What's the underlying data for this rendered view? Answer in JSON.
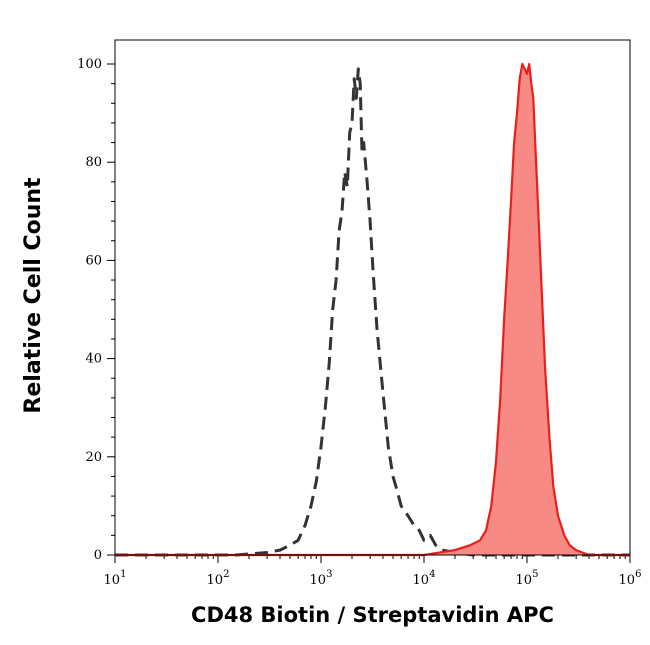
{
  "chart_data": {
    "type": "area",
    "xlabel": "CD48 Biotin / Streptavidin APC",
    "ylabel": "Relative Cell Count",
    "x_scale": "log",
    "xlim": [
      10,
      1000000
    ],
    "ylim": [
      0,
      100
    ],
    "x_ticks": [
      {
        "value": 10,
        "base": "10",
        "exp": "1"
      },
      {
        "value": 100,
        "base": "10",
        "exp": "2"
      },
      {
        "value": 1000,
        "base": "10",
        "exp": "3"
      },
      {
        "value": 10000,
        "base": "10",
        "exp": "4"
      },
      {
        "value": 100000,
        "base": "10",
        "exp": "5"
      },
      {
        "value": 1000000,
        "base": "10",
        "exp": "6"
      }
    ],
    "y_ticks": [
      {
        "value": 0,
        "label": "0"
      },
      {
        "value": 20,
        "label": "20"
      },
      {
        "value": 40,
        "label": "40"
      },
      {
        "value": 60,
        "label": "60"
      },
      {
        "value": 80,
        "label": "80"
      },
      {
        "value": 100,
        "label": "100"
      }
    ],
    "grid": false,
    "series": [
      {
        "style": "dashed",
        "color": "#333333",
        "fill": "none",
        "x": [
          10,
          150,
          300,
          400,
          500,
          600,
          700,
          800,
          900,
          1000,
          1100,
          1200,
          1300,
          1400,
          1500,
          1600,
          1700,
          1800,
          1900,
          2000,
          2100,
          2200,
          2300,
          2400,
          2500,
          2600,
          2700,
          2800,
          2900,
          3000,
          3200,
          3500,
          4000,
          4500,
          5000,
          5500,
          6000,
          7000,
          8000,
          9000,
          10000,
          11500,
          13000,
          15000,
          20000,
          30000,
          50000,
          100000,
          1000000
        ],
        "y": [
          0,
          0,
          0.5,
          1,
          2,
          3,
          6,
          10,
          15,
          22,
          30,
          39,
          50,
          56,
          66,
          70,
          78,
          75,
          86,
          88,
          97,
          93,
          99,
          96,
          82,
          84,
          80,
          76,
          72,
          68,
          58,
          46,
          33,
          22,
          16,
          13,
          10,
          8,
          6,
          5,
          3,
          4,
          2,
          1,
          0.5,
          0,
          0,
          0,
          0
        ]
      },
      {
        "style": "solid",
        "color": "#e8201a",
        "fill": "#f88a86",
        "x": [
          10,
          10000,
          20000,
          28000,
          35000,
          40000,
          45000,
          50000,
          55000,
          60000,
          65000,
          70000,
          75000,
          80000,
          85000,
          90000,
          95000,
          100000,
          105000,
          110000,
          115000,
          120000,
          130000,
          140000,
          150000,
          165000,
          180000,
          200000,
          230000,
          260000,
          300000,
          400000,
          1000000
        ],
        "y": [
          0,
          0,
          1,
          2,
          3,
          5,
          10,
          19,
          32,
          48,
          60,
          72,
          84,
          90,
          97,
          100,
          99,
          98,
          100,
          96,
          93,
          84,
          68,
          52,
          38,
          24,
          14,
          8,
          4,
          2,
          1,
          0,
          0
        ]
      }
    ]
  }
}
